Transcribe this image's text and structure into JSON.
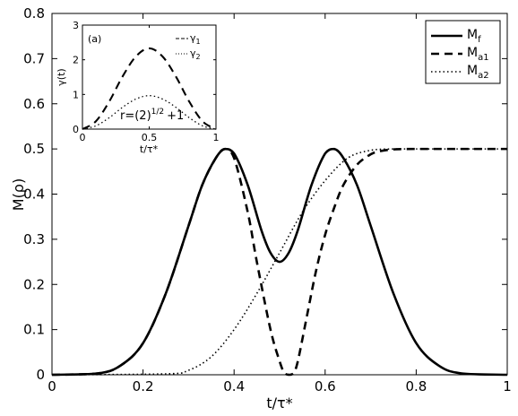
{
  "chart_data": [
    {
      "type": "line",
      "title": "",
      "xlabel": "t/τ*",
      "ylabel": "M(ρ)",
      "xlim": [
        0,
        1
      ],
      "ylim": [
        0,
        0.8
      ],
      "xticks": [
        0,
        0.2,
        0.4,
        0.6,
        0.8,
        1
      ],
      "xtick_labels": [
        "0",
        "0.2",
        "0.4",
        "0.6",
        "0.8",
        "1"
      ],
      "yticks": [
        0,
        0.1,
        0.2,
        0.3,
        0.4,
        0.5,
        0.6,
        0.7,
        0.8
      ],
      "ytick_labels": [
        "0",
        "0.1",
        "0.2",
        "0.3",
        "0.4",
        "0.5",
        "0.6",
        "0.7",
        "0.8"
      ],
      "legend_position": "top-right",
      "grid": false,
      "series": [
        {
          "name": "M_f",
          "label_main": "M",
          "label_sub": "f",
          "style": "solid",
          "x": [
            0,
            0.1,
            0.15,
            0.2,
            0.25,
            0.3,
            0.33,
            0.36,
            0.38,
            0.4,
            0.43,
            0.46,
            0.48,
            0.5,
            0.52,
            0.54,
            0.57,
            0.6,
            0.62,
            0.64,
            0.67,
            0.7,
            0.75,
            0.8,
            0.85,
            0.9,
            1
          ],
          "y": [
            0,
            0.003,
            0.02,
            0.07,
            0.18,
            0.33,
            0.42,
            0.48,
            0.5,
            0.49,
            0.42,
            0.32,
            0.27,
            0.25,
            0.27,
            0.32,
            0.42,
            0.49,
            0.5,
            0.48,
            0.42,
            0.33,
            0.18,
            0.07,
            0.02,
            0.003,
            0
          ]
        },
        {
          "name": "M_a1",
          "label_main": "M",
          "label_sub": "a1",
          "style": "dashed",
          "x": [
            0,
            0.1,
            0.15,
            0.2,
            0.25,
            0.3,
            0.33,
            0.36,
            0.38,
            0.4,
            0.43,
            0.45,
            0.48,
            0.5,
            0.51,
            0.52,
            0.53,
            0.54,
            0.56,
            0.58,
            0.6,
            0.62,
            0.64,
            0.67,
            0.7,
            0.72,
            0.75,
            0.8,
            0.9,
            1
          ],
          "y": [
            0,
            0.003,
            0.02,
            0.07,
            0.18,
            0.33,
            0.42,
            0.48,
            0.5,
            0.48,
            0.36,
            0.25,
            0.1,
            0.03,
            0.005,
            0,
            0.003,
            0.03,
            0.13,
            0.23,
            0.31,
            0.37,
            0.42,
            0.465,
            0.488,
            0.495,
            0.499,
            0.5,
            0.5,
            0.5
          ]
        },
        {
          "name": "M_a2",
          "label_main": "M",
          "label_sub": "a2",
          "style": "dotted",
          "x": [
            0,
            0.25,
            0.3,
            0.35,
            0.4,
            0.45,
            0.5,
            0.55,
            0.6,
            0.65,
            0.7,
            0.75,
            0.8,
            0.9,
            1
          ],
          "y": [
            0,
            0.002,
            0.01,
            0.04,
            0.1,
            0.18,
            0.27,
            0.36,
            0.43,
            0.48,
            0.497,
            0.5,
            0.5,
            0.5,
            0.5
          ]
        }
      ]
    },
    {
      "type": "line",
      "title": "(a)",
      "xlabel": "t/τ*",
      "ylabel": "γ(t)",
      "xlim": [
        0,
        1
      ],
      "ylim": [
        0,
        3
      ],
      "xticks": [
        0,
        0.5,
        1
      ],
      "xtick_labels": [
        "0",
        "0.5",
        "1"
      ],
      "yticks": [
        0,
        1,
        2,
        3
      ],
      "ytick_labels": [
        "0",
        "1",
        "2",
        "3"
      ],
      "legend_position": "top-right",
      "annotation": {
        "main": "r=(2)",
        "sup": "1/2",
        "tail": "+1"
      },
      "series": [
        {
          "name": "γ_1",
          "label_main": "γ",
          "label_sub": "1",
          "style": "dashed",
          "x": [
            0,
            0.1,
            0.2,
            0.3,
            0.4,
            0.5,
            0.6,
            0.7,
            0.8,
            0.9,
            1
          ],
          "y": [
            0,
            0.224,
            0.792,
            1.515,
            2.095,
            2.33,
            2.095,
            1.515,
            0.792,
            0.224,
            0
          ]
        },
        {
          "name": "γ_2",
          "label_main": "γ",
          "label_sub": "2",
          "style": "dotted",
          "x": [
            0,
            0.1,
            0.2,
            0.3,
            0.4,
            0.5,
            0.6,
            0.7,
            0.8,
            0.9,
            1
          ],
          "y": [
            0,
            0.093,
            0.328,
            0.628,
            0.867,
            0.965,
            0.867,
            0.628,
            0.328,
            0.093,
            0
          ]
        }
      ]
    }
  ]
}
